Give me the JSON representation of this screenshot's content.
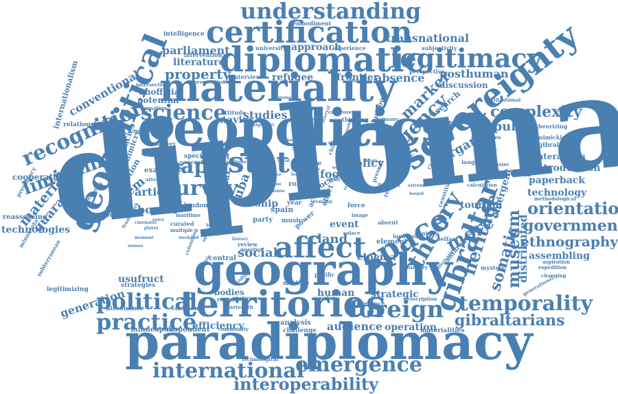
{
  "words": {
    "diplomacy": "diplomacy",
    "paradiplomacy": "paradiplomacy",
    "geopolitics": "geopolitics",
    "materiality": "materiality",
    "geography": "geography",
    "territories": "territories",
    "diplomatic": "diplomatic",
    "sovereignty": "sovereignty",
    "certification": "certification",
    "geopolitical": "geopolitical",
    "state": "state",
    "space": "space",
    "affect": "affect",
    "gibraltar": "gibraltar",
    "legitimacy": "legitimacy",
    "understanding": "understanding",
    "emergence": "emergence",
    "international": "international",
    "interoperability": "interoperability",
    "political": "political",
    "practice": "practice",
    "foreign": "foreign",
    "temporality": "temporality",
    "gibraltarians": "gibraltarians",
    "orientation": "orientation",
    "government": "government",
    "ethnography": "ethnography",
    "complexity": "complexity",
    "science": "science",
    "paper": "paper",
    "survey": "survey",
    "recognition": "recognition",
    "liminality": "liminality",
    "theory": "theory",
    "agency": "agency",
    "marker": "marker",
    "heritage": "heritage",
    "museum": "museum",
    "somatic": "somatic",
    "more": "more",
    "organic": "organic",
    "popular": "popular",
    "posthuman": "posthuman",
    "property": "property",
    "parliament": "parliament",
    "literature": "literature",
    "transnational": "transnational",
    "approach": "approach",
    "refugee": "refugee",
    "frontier": "frontier",
    "absence": "absence",
    "studies": "studies",
    "navies": "navies",
    "social": "social",
    "land": "land",
    "cinema": "cinema",
    "audience": "audience",
    "operation": "operation",
    "human": "human",
    "strategic": "strategic",
    "efficiency": "efficiency",
    "bodies": "bodies",
    "usufruct": "usufruct",
    "generation": "generation",
    "border": "border",
    "article": "article",
    "system": "system",
    "material": "material",
    "guarantee": "guarantee",
    "technologies": "technologies",
    "conventional": "conventional",
    "internationalism": "internationalism",
    "cooperation": "cooperation",
    "network": "network",
    "introduction": "introduction",
    "paperback": "paperback",
    "technology": "technology",
    "interaction": "interaction",
    "distributed": "distributed",
    "assembling": "assembling",
    "tourism": "tourism",
    "emergent": "emergent",
    "policy": "policy",
    "food": "food",
    "ship": "ship",
    "cuba": "cuba",
    "event": "event",
    "station": "station",
    "brexit": "brexit",
    "export": "export",
    "diplomacies": "diplomacies",
    "mimicry": "mimicry",
    "unofficial": "unofficial",
    "potential": "potential",
    "research": "research",
    "discussion": "discussion",
    "relationship": "relationship",
    "reassessing": "reassessing",
    "minneapolis": "minneapolis",
    "respondent": "respondent",
    "analysis": "analysis",
    "challenge": "challenge",
    "materialities": "materialities",
    "intelligence": "intelligence",
    "embodiment": "embodiment",
    "university": "university",
    "experience": "experience",
    "subjectivity": "subjectivity",
    "intervention": "intervention",
    "perspective": "perspective",
    "journey": "journey",
    "legitimizing": "legitimizing",
    "dissonance": "dissonance",
    "strategies": "strategies",
    "ragnarok": "ragnarok",
    "pacific": "pacific",
    "central": "central",
    "nation": "nation",
    "presence": "presence",
    "minnesota": "minnesota",
    "subterranean": "subterranean",
    "presidency": "presidency",
    "examine": "examine",
    "narrative": "narrative",
    "formation": "formation",
    "mimicking": "mimicking",
    "gibraltarian": "gibraltarian",
    "methodological": "methodological",
    "aspiration": "aspiration",
    "expedition": "expedition",
    "london": "london",
    "special": "special",
    "maritime": "maritime",
    "relations": "relations",
    "humour": "humour",
    "germany": "germany",
    "argue": "argue",
    "thinking": "thinking",
    "controversy": "controversy",
    "attitude": "attitude",
    "global": "global",
    "century": "century",
    "belfast": "belfast",
    "element": "element",
    "location": "location",
    "machine": "machine",
    "review": "review",
    "music": "music",
    "power": "power",
    "question": "question",
    "evolution": "evolution",
    "calculation": "calculation",
    "anthropology": "anthropology",
    "alternative": "alternative",
    "laughter": "laughter",
    "processes": "processes",
    "theorizing": "theorizing",
    "circulation": "circulation",
    "constituting": "constituting",
    "civilizational": "civilizational",
    "changing": "changing",
    "generational": "generational",
    "emphasize": "emphasize",
    "symbolic": "symbolic",
    "mystery": "mystery",
    "interview": "interview",
    "provocation": "provocation",
    "intersection": "intersection",
    "framework": "framework",
    "curated": "curated",
    "multiple": "multiple",
    "concrete": "concrete",
    "colonising": "colonising",
    "reading": "reading",
    "nineteenth": "nineteenth",
    "examination": "examination",
    "technological": "technological",
    "community": "community",
    "genealogy": "genealogy",
    "proscription": "proscription",
    "boundary": "boundary",
    "attention": "attention",
    "individual": "individual",
    "memory": "memory",
    "ocean": "ocean",
    "effect": "effect",
    "spain": "spain",
    "party": "party",
    "case": "case",
    "actor": "actor",
    "remain": "remain",
    "solace": "solace",
    "absent": "absent",
    "role": "role",
    "year": "year",
    "highlight": "highlight",
    "argument": "argument",
    "inspired": "inspired",
    "delivery": "delivery",
    "interval": "interval",
    "dominant": "dominant",
    "marvel": "marvel",
    "naval": "naval",
    "various": "various",
    "chichester": "chichester",
    "illustrate": "illustrate",
    "possible": "possible",
    "result": "result",
    "putting": "putting",
    "display": "display",
    "works": "works",
    "bodily": "bodily",
    "brain": "brain",
    "cultural": "cultural",
    "history": "history",
    "example": "example",
    "plates": "plates",
    "agents": "agents",
    "change": "change",
    "american": "american",
    "heard": "heard",
    "moment": "moment",
    "senses": "senses",
    "cinematic": "cinematic",
    "voice": "voice",
    "weekend": "weekend",
    "dynamic": "dynamic",
    "extreme": "extreme",
    "bound": "bound",
    "present": "present",
    "tension": "tension",
    "force": "force",
    "image": "image",
    "study": "study",
    "value": "value",
    "sense": "sense",
    "unique": "unique",
    "local": "local",
    "makes": "makes",
    "place": "place",
    "politics": "politics",
    "wall": "wall"
  }
}
